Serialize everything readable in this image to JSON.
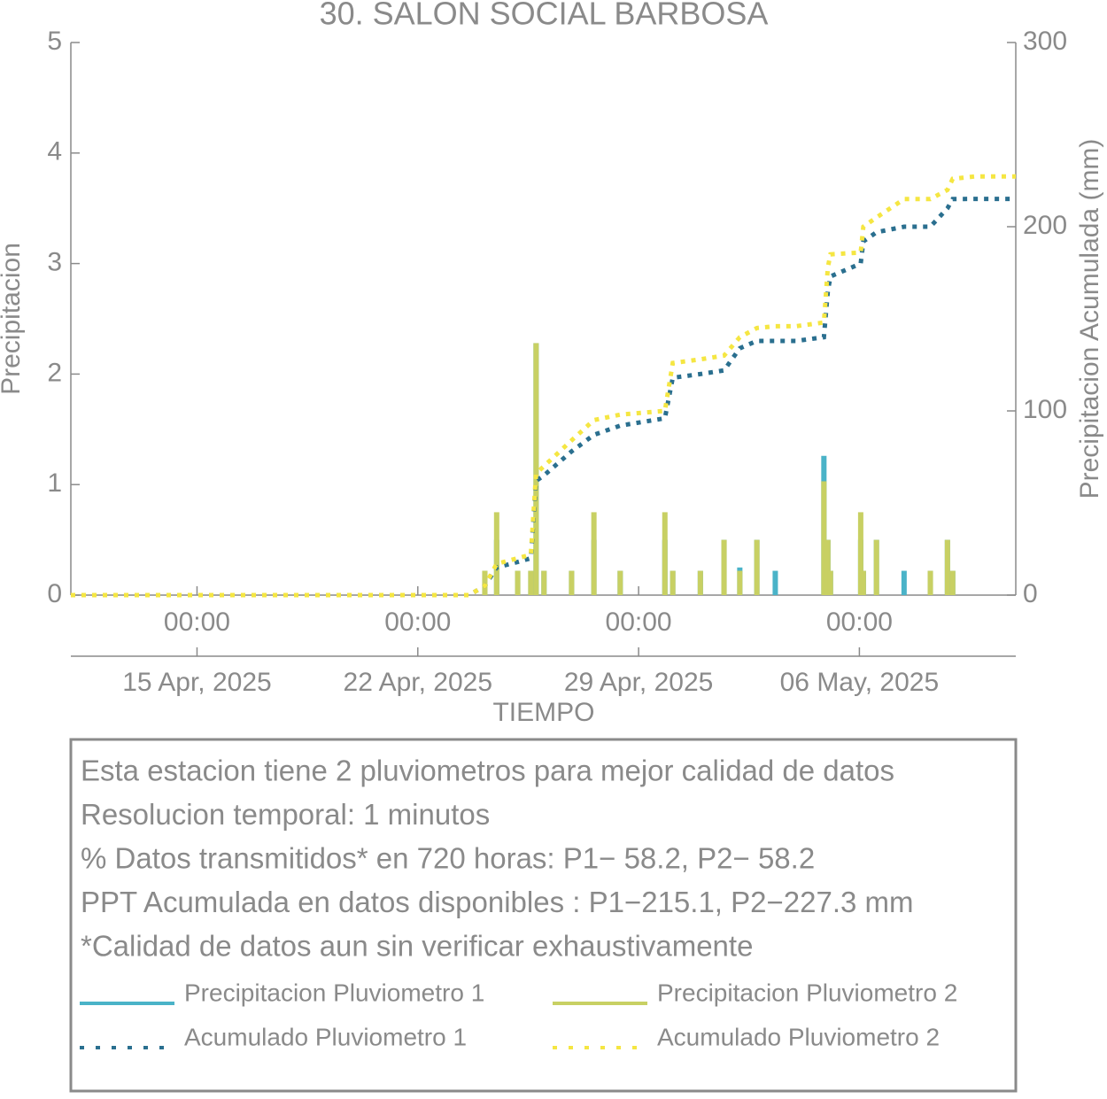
{
  "chart_data": {
    "type": "combo",
    "title": "30. SALON SOCIAL BARBOSA",
    "x_label": "TIEMPO",
    "y_label": "Precipitacion",
    "y2_label": "Precipitacion Acumulada (mm)",
    "x": [
      "2025-04-11 00:00",
      "2025-04-23 15:00",
      "2025-04-24 03:00",
      "2025-04-24 12:00",
      "2025-04-25 04:00",
      "2025-04-25 14:00",
      "2025-04-25 18:00",
      "2025-04-26 00:00",
      "2025-04-26 21:00",
      "2025-04-27 14:00",
      "2025-04-28 10:00",
      "2025-04-29 20:00",
      "2025-04-30 02:00",
      "2025-04-30 23:00",
      "2025-05-01 17:00",
      "2025-05-02 05:00",
      "2025-05-02 18:00",
      "2025-05-03 08:00",
      "2025-05-04 00:00",
      "2025-05-04 21:00",
      "2025-05-05 00:00",
      "2025-05-05 02:00",
      "2025-05-06 01:00",
      "2025-05-06 03:00",
      "2025-05-06 13:00",
      "2025-05-07 10:00",
      "2025-05-08 06:00",
      "2025-05-08 19:00",
      "2025-05-08 23:00",
      "2025-05-09 16:00",
      "2025-05-10 23:00"
    ],
    "xlim": [
      "2025-04-11 00:00",
      "2025-05-10 23:00"
    ],
    "xticks": [
      {
        "value": "2025-04-15 00:00",
        "label": "00:00"
      },
      {
        "value": "2025-04-22 00:00",
        "label": "00:00"
      },
      {
        "value": "2025-04-29 00:00",
        "label": "00:00"
      },
      {
        "value": "2025-05-06 00:00",
        "label": "00:00"
      }
    ],
    "xtick_dates": [
      "15 Apr, 2025",
      "22 Apr, 2025",
      "29 Apr, 2025",
      "06 May, 2025"
    ],
    "ylim": [
      0,
      5
    ],
    "yticks": [
      0,
      1,
      2,
      3,
      4,
      5
    ],
    "y2lim": [
      0,
      300
    ],
    "y2ticks": [
      0,
      100,
      200,
      300
    ],
    "grid": false,
    "series": [
      {
        "name": "Precipitacion Pluviometro 1",
        "type": "bar",
        "color": "#4ab3c8",
        "values": [
          0,
          0,
          0.22,
          0.5,
          0.22,
          0.22,
          2.28,
          0.22,
          0.22,
          0.5,
          0.22,
          0.5,
          0.22,
          0.22,
          0.5,
          0.25,
          0.5,
          0.22,
          0,
          1.26,
          0.5,
          0.22,
          0.5,
          0.22,
          0.5,
          0.22,
          0.22,
          0.5,
          0.22,
          0,
          0
        ]
      },
      {
        "name": "Precipitacion Pluviometro 2",
        "type": "bar",
        "color": "#c8d063",
        "values": [
          0,
          0,
          0.22,
          0.75,
          0.22,
          0.22,
          2.28,
          0.22,
          0.22,
          0.75,
          0.22,
          0.75,
          0.22,
          0.22,
          0.5,
          0.22,
          0.5,
          0,
          0,
          1.03,
          0.5,
          0.22,
          0.75,
          0.22,
          0.5,
          0,
          0.22,
          0.5,
          0.22,
          0,
          0
        ]
      },
      {
        "name": "Acumulado Pluviometro 1",
        "type": "line",
        "axis": "y2",
        "color": "#2a6f8f",
        "values": [
          0,
          0,
          5,
          15,
          18,
          20,
          62,
          65,
          78,
          87,
          92,
          96,
          118,
          120,
          122,
          134,
          138,
          138,
          138,
          140,
          165,
          173,
          180,
          192,
          197,
          200,
          200,
          210,
          215,
          215.1,
          215.1
        ]
      },
      {
        "name": "Acumulado Pluviometro 2",
        "type": "line",
        "axis": "y2",
        "color": "#f5e642",
        "values": [
          0,
          0,
          5,
          17,
          20,
          22,
          66,
          70,
          84,
          95,
          98,
          100,
          126,
          128,
          130,
          140,
          145,
          146,
          146,
          148,
          178,
          185,
          186,
          200,
          205,
          215,
          215,
          220,
          226,
          227.3,
          227.3
        ]
      }
    ],
    "notes": [
      "Esta estacion tiene 2 pluviometros para mejor calidad de datos",
      "Resolucion temporal: 1 minutos",
      "% Datos transmitidos* en 720 horas: P1− 58.2, P2− 58.2",
      "PPT Acumulada en datos disponibles : P1−215.1, P2−227.3 mm",
      "*Calidad de datos aun sin verificar exhaustivamente"
    ]
  }
}
